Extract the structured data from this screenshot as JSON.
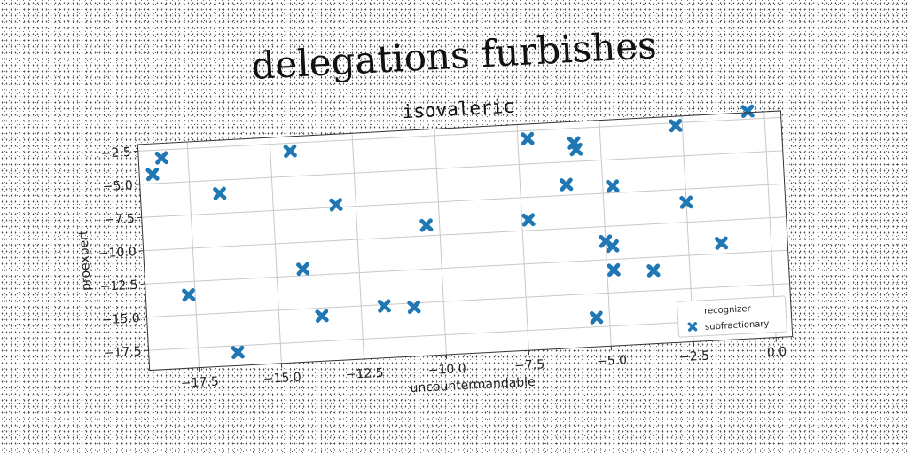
{
  "figure": {
    "suptitle": "delegations furbishes"
  },
  "chart_data": {
    "type": "scatter",
    "title": "isovaleric",
    "xlabel": "uncountermandable",
    "ylabel": "proexpert",
    "xlim": [
      -19.0,
      0.5
    ],
    "ylim": [
      -19.0,
      -2.0
    ],
    "xticks": [
      -17.5,
      -15.0,
      -12.5,
      -10.0,
      -7.5,
      -5.0,
      -2.5,
      0.0
    ],
    "yticks": [
      -2.5,
      -5.0,
      -7.5,
      -10.0,
      -12.5,
      -15.0,
      -17.5
    ],
    "xtick_labels": [
      "−17.5",
      "−15.0",
      "−12.5",
      "−10.0",
      "−7.5",
      "−5.0",
      "−2.5",
      "0.0"
    ],
    "ytick_labels": [
      "−2.5",
      "−5.0",
      "−7.5",
      "−10.0",
      "−12.5",
      "−15.0",
      "−17.5"
    ],
    "grid": true,
    "legend": {
      "placement": "lower-right",
      "entries": [
        {
          "label": "recognizer",
          "marker": "none"
        },
        {
          "label": "subfractionary",
          "marker": "X",
          "color": "#1f77b4"
        }
      ]
    },
    "series": [
      {
        "name": "subfractionary",
        "marker": "X",
        "color": "#1f77b4",
        "points": [
          [
            -18.6,
            -4.3
          ],
          [
            -18.3,
            -3.1
          ],
          [
            -17.7,
            -13.5
          ],
          [
            -16.6,
            -6.0
          ],
          [
            -16.3,
            -18.0
          ],
          [
            -14.4,
            -3.1
          ],
          [
            -14.2,
            -12.0
          ],
          [
            -13.7,
            -15.6
          ],
          [
            -13.1,
            -7.3
          ],
          [
            -11.8,
            -15.1
          ],
          [
            -10.9,
            -15.3
          ],
          [
            -10.4,
            -9.2
          ],
          [
            -7.3,
            -9.2
          ],
          [
            -7.2,
            -3.1
          ],
          [
            -6.1,
            -6.7
          ],
          [
            -5.8,
            -3.6
          ],
          [
            -5.75,
            -4.1
          ],
          [
            -5.4,
            -16.8
          ],
          [
            -5.0,
            -11.1
          ],
          [
            -4.8,
            -11.5
          ],
          [
            -4.8,
            -13.3
          ],
          [
            -4.7,
            -7.0
          ],
          [
            -3.6,
            -13.5
          ],
          [
            -2.7,
            -2.7
          ],
          [
            -2.5,
            -8.5
          ],
          [
            -1.5,
            -11.7
          ],
          [
            -0.5,
            -1.9
          ]
        ]
      }
    ]
  }
}
